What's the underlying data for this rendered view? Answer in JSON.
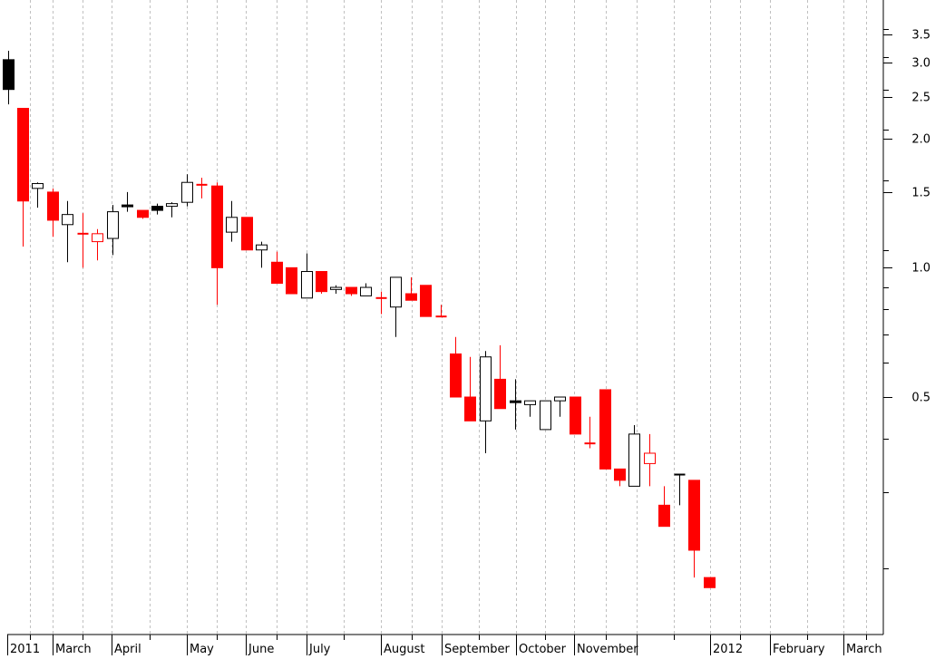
{
  "chart_data": {
    "type": "candlestick",
    "title": "",
    "xlabel": "",
    "ylabel": "",
    "y_scale": "log",
    "ylim": [
      0.14,
      4.2
    ],
    "grid": {
      "vertical": true,
      "horizontal": false
    },
    "colors": {
      "up": "#ffffff",
      "down": "#ff0000",
      "black": "#000000",
      "grid": "#c0c0c0"
    },
    "x_tick_labels": [
      "2011",
      "March",
      "April",
      "May",
      "June",
      "July",
      "August",
      "September",
      "October",
      "November",
      "2012",
      "February",
      "March"
    ],
    "y_tick_labels": [
      "3.5",
      "3.0",
      "2.5",
      "2.0",
      "1.5",
      "1.0",
      "0.5"
    ],
    "y_ticks": [
      3.5,
      3.0,
      2.5,
      2.0,
      1.5,
      1.0,
      0.5
    ],
    "series": [
      {
        "o": 2.6,
        "h": 3.2,
        "l": 2.4,
        "c": 3.05,
        "color": "black"
      },
      {
        "o": 2.35,
        "h": 2.35,
        "l": 1.12,
        "c": 1.43,
        "color": "red"
      },
      {
        "o": 1.53,
        "h": 1.58,
        "l": 1.38,
        "c": 1.57,
        "color": "white"
      },
      {
        "o": 1.5,
        "h": 1.53,
        "l": 1.18,
        "c": 1.29,
        "color": "red"
      },
      {
        "o": 1.26,
        "h": 1.43,
        "l": 1.03,
        "c": 1.33,
        "color": "white"
      },
      {
        "o": 1.2,
        "h": 1.34,
        "l": 1.0,
        "c": 1.2,
        "color": "red-doji"
      },
      {
        "o": 1.15,
        "h": 1.23,
        "l": 1.04,
        "c": 1.2,
        "color": "white-red"
      },
      {
        "o": 1.17,
        "h": 1.4,
        "l": 1.07,
        "c": 1.35,
        "color": "white"
      },
      {
        "o": 1.39,
        "h": 1.5,
        "l": 1.35,
        "c": 1.4,
        "color": "black"
      },
      {
        "o": 1.36,
        "h": 1.36,
        "l": 1.3,
        "c": 1.31,
        "color": "red"
      },
      {
        "o": 1.36,
        "h": 1.41,
        "l": 1.33,
        "c": 1.39,
        "color": "black"
      },
      {
        "o": 1.39,
        "h": 1.42,
        "l": 1.31,
        "c": 1.41,
        "color": "white"
      },
      {
        "o": 1.42,
        "h": 1.65,
        "l": 1.39,
        "c": 1.58,
        "color": "white"
      },
      {
        "o": 1.58,
        "h": 1.62,
        "l": 1.45,
        "c": 1.56,
        "color": "red-doji"
      },
      {
        "o": 1.55,
        "h": 1.58,
        "l": 0.82,
        "c": 1.0,
        "color": "red"
      },
      {
        "o": 1.21,
        "h": 1.43,
        "l": 1.15,
        "c": 1.31,
        "color": "white"
      },
      {
        "o": 1.31,
        "h": 1.31,
        "l": 1.1,
        "c": 1.1,
        "color": "red"
      },
      {
        "o": 1.1,
        "h": 1.15,
        "l": 1.0,
        "c": 1.13,
        "color": "white"
      },
      {
        "o": 1.03,
        "h": 1.09,
        "l": 0.92,
        "c": 0.92,
        "color": "red"
      },
      {
        "o": 1.0,
        "h": 1.0,
        "l": 0.87,
        "c": 0.87,
        "color": "red"
      },
      {
        "o": 0.85,
        "h": 1.08,
        "l": 0.85,
        "c": 0.98,
        "color": "white"
      },
      {
        "o": 0.98,
        "h": 0.98,
        "l": 0.87,
        "c": 0.88,
        "color": "red"
      },
      {
        "o": 0.89,
        "h": 0.91,
        "l": 0.87,
        "c": 0.9,
        "color": "white"
      },
      {
        "o": 0.9,
        "h": 0.9,
        "l": 0.86,
        "c": 0.87,
        "color": "red"
      },
      {
        "o": 0.86,
        "h": 0.92,
        "l": 0.86,
        "c": 0.9,
        "color": "white"
      },
      {
        "o": 0.85,
        "h": 0.88,
        "l": 0.78,
        "c": 0.85,
        "color": "red-doji"
      },
      {
        "o": 0.81,
        "h": 0.95,
        "l": 0.69,
        "c": 0.95,
        "color": "white"
      },
      {
        "o": 0.87,
        "h": 0.95,
        "l": 0.84,
        "c": 0.84,
        "color": "red"
      },
      {
        "o": 0.91,
        "h": 0.91,
        "l": 0.77,
        "c": 0.77,
        "color": "red"
      },
      {
        "o": 0.77,
        "h": 0.82,
        "l": 0.77,
        "c": 0.77,
        "color": "red-doji"
      },
      {
        "o": 0.63,
        "h": 0.69,
        "l": 0.5,
        "c": 0.5,
        "color": "red"
      },
      {
        "o": 0.5,
        "h": 0.62,
        "l": 0.44,
        "c": 0.44,
        "color": "red"
      },
      {
        "o": 0.44,
        "h": 0.64,
        "l": 0.37,
        "c": 0.62,
        "color": "white"
      },
      {
        "o": 0.55,
        "h": 0.66,
        "l": 0.47,
        "c": 0.47,
        "color": "red"
      },
      {
        "o": 0.49,
        "h": 0.55,
        "l": 0.42,
        "c": 0.49,
        "color": "black"
      },
      {
        "o": 0.48,
        "h": 0.49,
        "l": 0.45,
        "c": 0.49,
        "color": "white"
      },
      {
        "o": 0.42,
        "h": 0.49,
        "l": 0.42,
        "c": 0.49,
        "color": "white"
      },
      {
        "o": 0.49,
        "h": 0.5,
        "l": 0.45,
        "c": 0.5,
        "color": "white"
      },
      {
        "o": 0.5,
        "h": 0.5,
        "l": 0.41,
        "c": 0.41,
        "color": "red"
      },
      {
        "o": 0.39,
        "h": 0.45,
        "l": 0.38,
        "c": 0.39,
        "color": "red-doji"
      },
      {
        "o": 0.52,
        "h": 0.52,
        "l": 0.34,
        "c": 0.34,
        "color": "red"
      },
      {
        "o": 0.34,
        "h": 0.34,
        "l": 0.31,
        "c": 0.32,
        "color": "red"
      },
      {
        "o": 0.31,
        "h": 0.43,
        "l": 0.31,
        "c": 0.41,
        "color": "white"
      },
      {
        "o": 0.37,
        "h": 0.41,
        "l": 0.31,
        "c": 0.35,
        "color": "white-red"
      },
      {
        "o": 0.28,
        "h": 0.31,
        "l": 0.25,
        "c": 0.25,
        "color": "red"
      },
      {
        "o": 0.33,
        "h": 0.33,
        "l": 0.28,
        "c": 0.33,
        "color": "black-doji"
      },
      {
        "o": 0.32,
        "h": 0.32,
        "l": 0.19,
        "c": 0.22,
        "color": "red"
      },
      {
        "o": 0.19,
        "h": 0.19,
        "l": 0.18,
        "c": 0.18,
        "color": "red"
      }
    ]
  }
}
